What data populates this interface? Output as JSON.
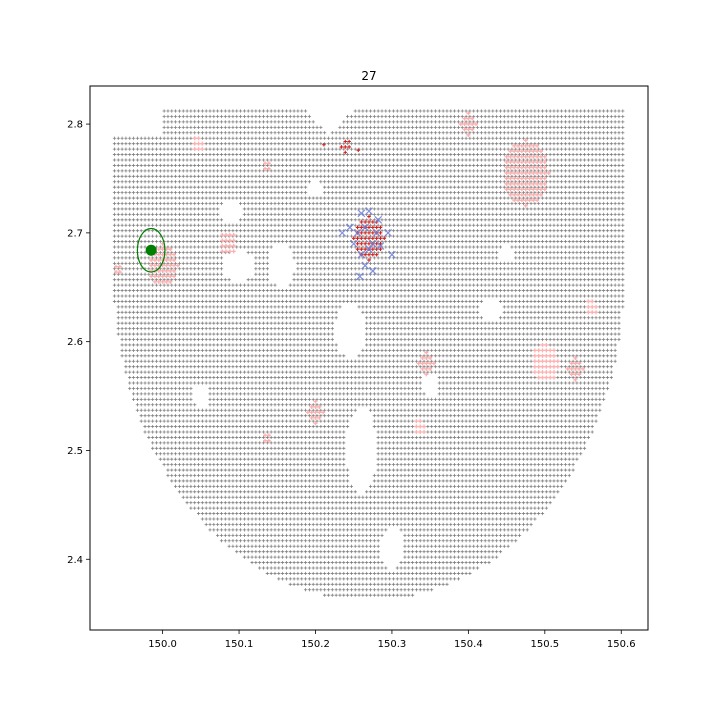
{
  "chart_data": {
    "type": "scatter",
    "title": "27",
    "xlabel": "",
    "ylabel": "",
    "xlim": [
      149.905,
      150.635
    ],
    "ylim": [
      2.335,
      2.835
    ],
    "x_ticks": [
      "150.0",
      "150.1",
      "150.2",
      "150.3",
      "150.4",
      "150.5",
      "150.6"
    ],
    "x_tick_values": [
      150.0,
      150.1,
      150.2,
      150.3,
      150.4,
      150.5,
      150.6
    ],
    "y_ticks": [
      "2.4",
      "2.5",
      "2.6",
      "2.7",
      "2.8"
    ],
    "y_tick_values": [
      2.4,
      2.5,
      2.6,
      2.7,
      2.8
    ],
    "grid": false,
    "colors": {
      "background_grid_points": "#808080",
      "pink_points": "#ffb0b0",
      "red_points": "#d62020",
      "blue_x_markers": "#6a7fd8",
      "highlight_point": "#008000"
    },
    "background_region": {
      "x_min": 149.937,
      "x_max": 150.605,
      "y_min": 2.362,
      "y_max": 2.812,
      "center_x": 150.27,
      "spacing": 0.005,
      "notch_x": 150.218,
      "notch_top_y": 2.812,
      "notch_bottom_y": 2.79,
      "holes": [
        {
          "x": 150.1,
          "y": 2.67,
          "rx": 0.022,
          "ry": 0.014
        },
        {
          "x": 150.155,
          "y": 2.67,
          "rx": 0.018,
          "ry": 0.02
        },
        {
          "x": 150.245,
          "y": 2.61,
          "rx": 0.02,
          "ry": 0.025
        },
        {
          "x": 150.26,
          "y": 2.5,
          "rx": 0.02,
          "ry": 0.04
        },
        {
          "x": 150.3,
          "y": 2.41,
          "rx": 0.015,
          "ry": 0.02
        },
        {
          "x": 150.09,
          "y": 2.72,
          "rx": 0.015,
          "ry": 0.01
        },
        {
          "x": 150.05,
          "y": 2.55,
          "rx": 0.012,
          "ry": 0.01
        },
        {
          "x": 150.43,
          "y": 2.63,
          "rx": 0.015,
          "ry": 0.01
        },
        {
          "x": 150.35,
          "y": 2.56,
          "rx": 0.01,
          "ry": 0.012
        },
        {
          "x": 150.2,
          "y": 2.74,
          "rx": 0.01,
          "ry": 0.008
        },
        {
          "x": 150.45,
          "y": 2.68,
          "rx": 0.01,
          "ry": 0.008
        }
      ]
    },
    "pink_clusters": [
      {
        "x": 150.475,
        "y": 2.755,
        "r": 0.03
      },
      {
        "x": 150.0,
        "y": 2.67,
        "r": 0.02
      },
      {
        "x": 150.085,
        "y": 2.69,
        "r": 0.012
      },
      {
        "x": 150.5,
        "y": 2.58,
        "r": 0.018
      },
      {
        "x": 150.54,
        "y": 2.575,
        "r": 0.01
      },
      {
        "x": 150.4,
        "y": 2.8,
        "r": 0.01
      },
      {
        "x": 150.345,
        "y": 2.58,
        "r": 0.01
      },
      {
        "x": 150.2,
        "y": 2.535,
        "r": 0.01
      },
      {
        "x": 150.335,
        "y": 2.52,
        "r": 0.008
      },
      {
        "x": 150.045,
        "y": 2.78,
        "r": 0.008
      },
      {
        "x": 150.135,
        "y": 2.76,
        "r": 0.006
      },
      {
        "x": 150.135,
        "y": 2.51,
        "r": 0.006
      },
      {
        "x": 150.56,
        "y": 2.63,
        "r": 0.008
      },
      {
        "x": 149.94,
        "y": 2.665,
        "r": 0.006
      }
    ],
    "red_clusters": [
      {
        "x": 150.27,
        "y": 2.695,
        "r": 0.02
      },
      {
        "x": 150.24,
        "y": 2.78,
        "r": 0.006
      },
      {
        "x": 150.255,
        "y": 2.775,
        "r": 0.004
      },
      {
        "x": 150.21,
        "y": 2.78,
        "r": 0.004
      }
    ],
    "blue_x_points": [
      {
        "x": 150.245,
        "y": 2.705
      },
      {
        "x": 150.26,
        "y": 2.718
      },
      {
        "x": 150.27,
        "y": 2.72
      },
      {
        "x": 150.255,
        "y": 2.7
      },
      {
        "x": 150.265,
        "y": 2.705
      },
      {
        "x": 150.28,
        "y": 2.7
      },
      {
        "x": 150.275,
        "y": 2.69
      },
      {
        "x": 150.25,
        "y": 2.69
      },
      {
        "x": 150.26,
        "y": 2.68
      },
      {
        "x": 150.27,
        "y": 2.685
      },
      {
        "x": 150.285,
        "y": 2.688
      },
      {
        "x": 150.265,
        "y": 2.67
      },
      {
        "x": 150.275,
        "y": 2.665
      },
      {
        "x": 150.295,
        "y": 2.7
      },
      {
        "x": 150.3,
        "y": 2.68
      },
      {
        "x": 150.235,
        "y": 2.7
      },
      {
        "x": 150.282,
        "y": 2.712
      },
      {
        "x": 150.258,
        "y": 2.66
      }
    ],
    "highlight": {
      "x": 149.985,
      "y": 2.684,
      "ellipse_rx": 0.018,
      "ellipse_ry": 0.02
    }
  }
}
